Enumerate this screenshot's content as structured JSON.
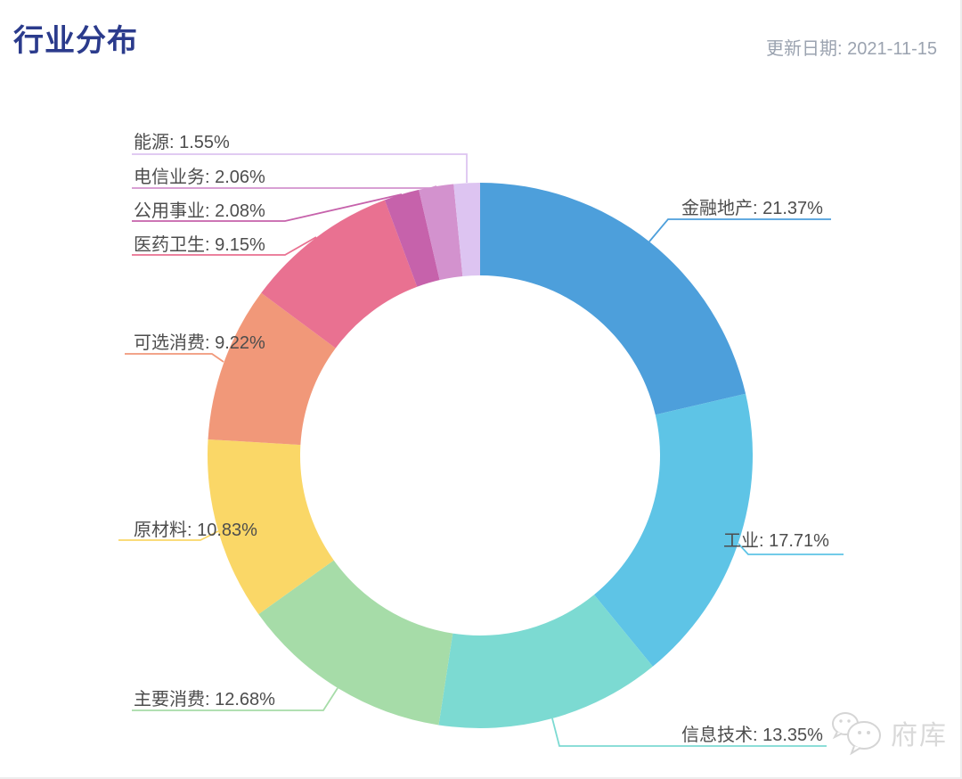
{
  "header": {
    "title": "行业分布",
    "update_label": "更新日期:",
    "update_date": "2021-11-15"
  },
  "chart_data": {
    "type": "pie",
    "subtype": "donut",
    "title": "行业分布",
    "unit": "%",
    "label_format": "{name}: {value}%",
    "start_angle": "12-oclock",
    "direction": "clockwise",
    "legend_position": "none",
    "inner_radius_ratio": 0.66,
    "series": [
      {
        "name": "金融地产",
        "value": 21.37,
        "color": "#4D9FDB"
      },
      {
        "name": "工业",
        "value": 17.71,
        "color": "#5EC4E6"
      },
      {
        "name": "信息技术",
        "value": 13.35,
        "color": "#7CDAD2"
      },
      {
        "name": "主要消费",
        "value": 12.68,
        "color": "#A6DCA8"
      },
      {
        "name": "原材料",
        "value": 10.83,
        "color": "#FAD767"
      },
      {
        "name": "可选消费",
        "value": 9.22,
        "color": "#F19879"
      },
      {
        "name": "医药卫生",
        "value": 9.15,
        "color": "#E97191"
      },
      {
        "name": "公用事业",
        "value": 2.08,
        "color": "#C662AB"
      },
      {
        "name": "电信业务",
        "value": 2.06,
        "color": "#D392CE"
      },
      {
        "name": "能源",
        "value": 1.55,
        "color": "#DDC4F1"
      }
    ]
  },
  "watermark": {
    "icon": "wechat-icon",
    "text": "府库"
  },
  "colors": {
    "title": "#2B3B8C",
    "date_text": "#9BA3B0",
    "label_text": "#4D4D4D",
    "watermark": "#D9D9D9",
    "background": "#FFFFFF"
  }
}
